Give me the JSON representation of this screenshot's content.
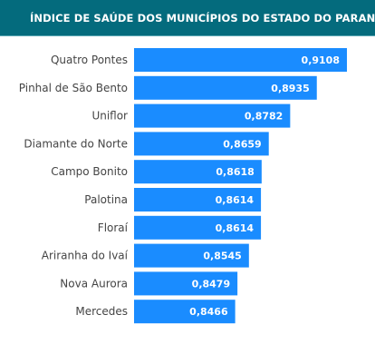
{
  "title": "ÍNDICE DE SAÚDE DOS MUNICÍPIOS DO ESTADO DO PARANÁ",
  "colors": {
    "header_bg": "#046b7d",
    "bar": "#1a8cff",
    "label_text": "#444444",
    "value_text": "#ffffff"
  },
  "chart_data": {
    "type": "bar",
    "orientation": "horizontal",
    "title": "ÍNDICE DE SAÚDE DOS MUNICÍPIOS DO ESTADO DO PARANÁ",
    "categories": [
      "Quatro Pontes",
      "Pinhal de São Bento",
      "Uniflor",
      "Diamante do Norte",
      "Campo Bonito",
      "Palotina",
      "Floraí",
      "Ariranha do Ivaí",
      "Nova Aurora",
      "Mercedes"
    ],
    "values": [
      0.9108,
      0.8935,
      0.8782,
      0.8659,
      0.8618,
      0.8614,
      0.8614,
      0.8545,
      0.8479,
      0.8466
    ],
    "value_labels": [
      "0,9108",
      "0,8935",
      "0,8782",
      "0,8659",
      "0,8618",
      "0,8614",
      "0,8614",
      "0,8545",
      "0,8479",
      "0,8466"
    ],
    "xlabel": "",
    "ylabel": "",
    "grid": false,
    "legend": "none"
  }
}
